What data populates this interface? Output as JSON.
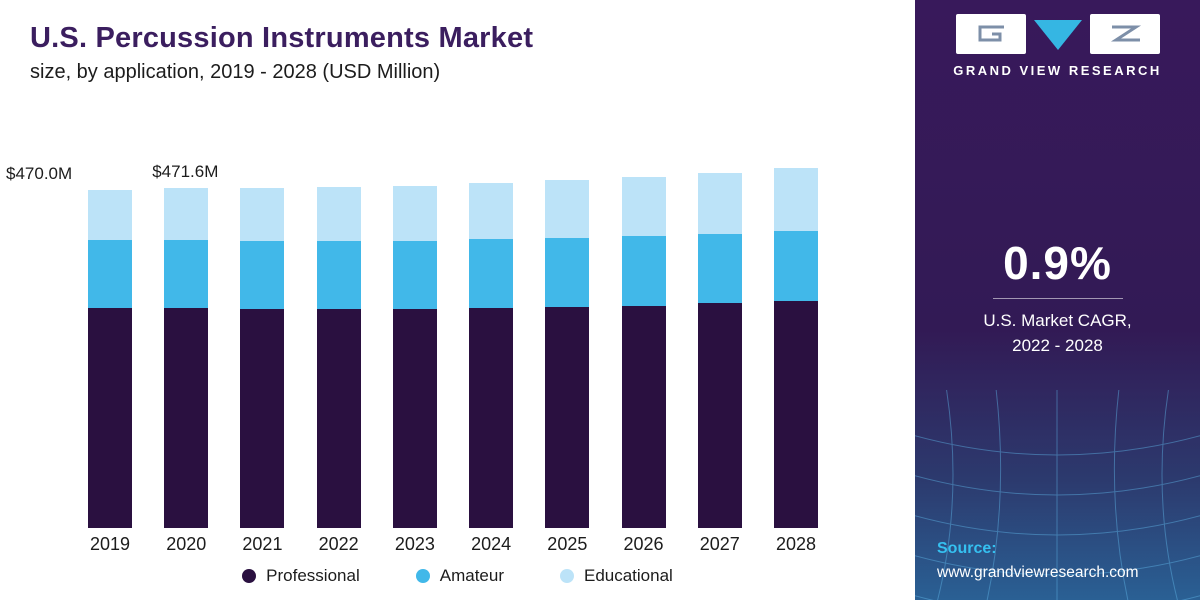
{
  "header": {
    "title": "U.S. Percussion Instruments Market",
    "subtitle": "size, by application, 2019 - 2028 (USD Million)"
  },
  "chart_data": {
    "type": "bar",
    "stacked": true,
    "title": "U.S. Percussion Instruments Market size, by application, 2019 - 2028 (USD Million)",
    "xlabel": "",
    "ylabel": "USD Million",
    "ylim": [
      0,
      510
    ],
    "grid": false,
    "legend_position": "bottom",
    "categories": [
      "2019",
      "2020",
      "2021",
      "2022",
      "2023",
      "2024",
      "2025",
      "2026",
      "2027",
      "2028"
    ],
    "series": [
      {
        "name": "Professional",
        "color": "#2a1040",
        "values": [
          306,
          305,
          304,
          304,
          304,
          305,
          307,
          309,
          312,
          315
        ]
      },
      {
        "name": "Amateur",
        "color": "#41b8e9",
        "values": [
          94,
          94.6,
          95,
          95,
          95,
          96,
          96,
          97,
          97,
          98
        ]
      },
      {
        "name": "Educational",
        "color": "#bce3f8",
        "values": [
          70,
          72,
          73,
          74,
          76,
          78,
          80,
          82,
          84,
          87
        ]
      }
    ],
    "totals": [
      470,
      471.6,
      472,
      473,
      475,
      479,
      483,
      488,
      493,
      500
    ],
    "annotations": [
      {
        "category": "2019",
        "label": "$470.0M"
      },
      {
        "category": "2020",
        "label": "$471.6M"
      }
    ]
  },
  "sidebar": {
    "brand": "GRAND VIEW RESEARCH",
    "cagr_value": "0.9%",
    "cagr_line1": "U.S. Market CAGR,",
    "cagr_line2": "2022 - 2028",
    "source_label": "Source:",
    "source_url": "www.grandviewresearch.com",
    "colors": {
      "background": "#38195b",
      "accent": "#35c0f0"
    }
  }
}
